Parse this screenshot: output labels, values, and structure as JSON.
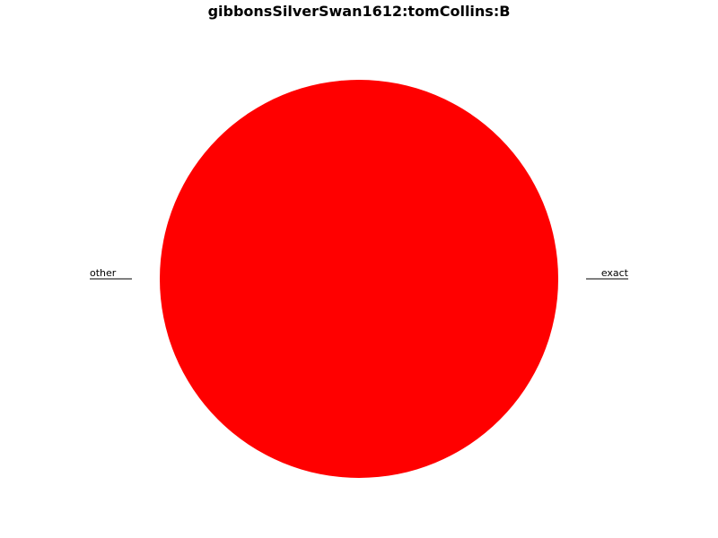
{
  "chart_data": {
    "type": "pie",
    "title": "gibbonsSilverSwan1612:tomCollins:B",
    "slices": [
      {
        "label": "exact",
        "value": 0,
        "color": "#ff0000"
      },
      {
        "label": "other",
        "value": 100,
        "color": "#ff0000"
      }
    ],
    "start_angle_deg": 0,
    "direction": "counterclockwise",
    "label_style": "leader-lines"
  }
}
